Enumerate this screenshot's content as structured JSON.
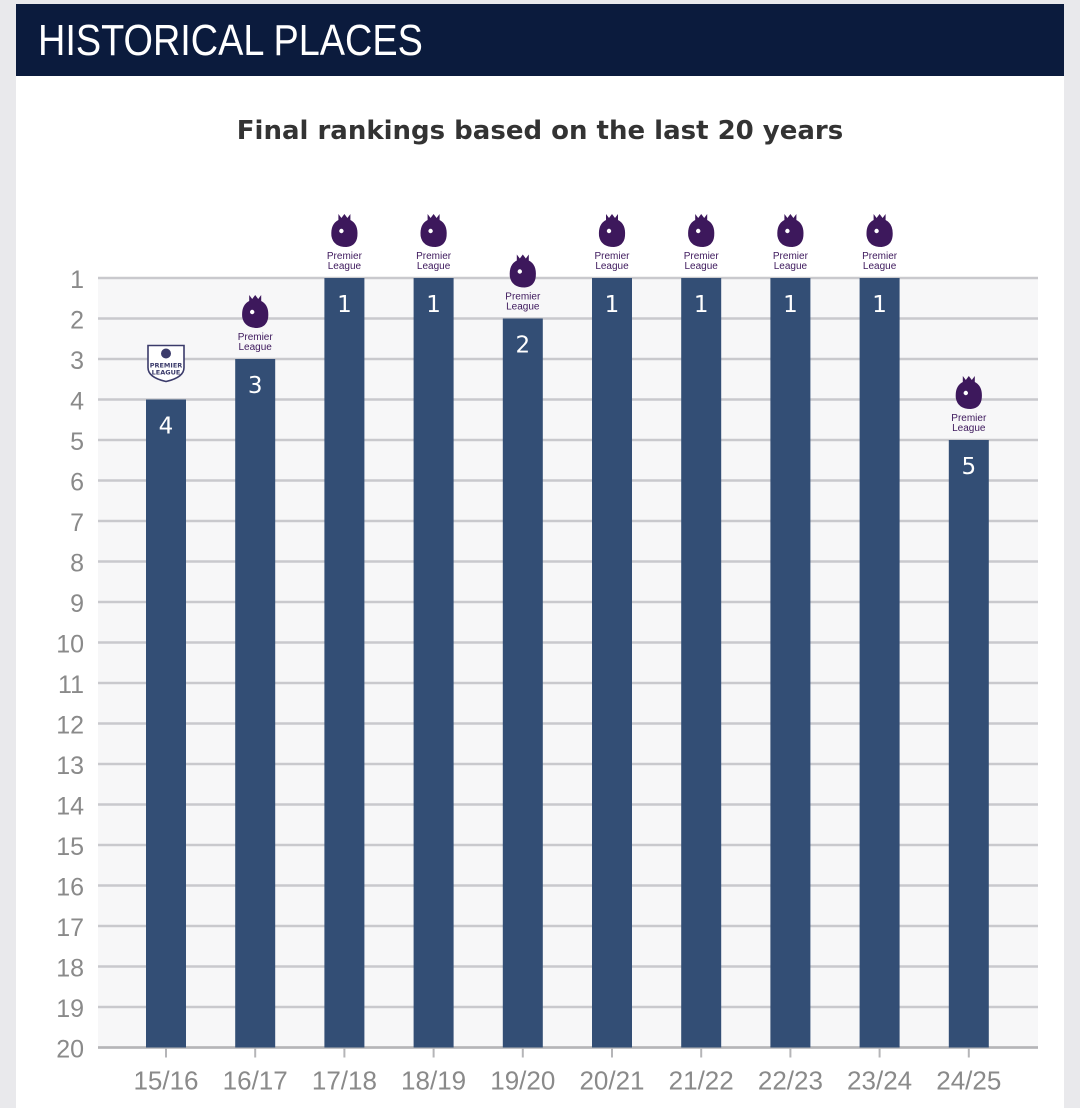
{
  "header": {
    "title": "HISTORICAL PLACES"
  },
  "colors": {
    "header_bg": "#0b1b3d",
    "bar": "#334e75",
    "grid": "#c9c9cd",
    "plot_bg": "#f7f7f8",
    "logo": "#3d185c"
  },
  "chart_data": {
    "type": "bar",
    "title": "Final rankings based on the last 20 years",
    "categories": [
      "15/16",
      "16/17",
      "17/18",
      "18/19",
      "19/20",
      "20/21",
      "21/22",
      "22/23",
      "23/24",
      "24/25"
    ],
    "values": [
      4,
      3,
      1,
      1,
      2,
      1,
      1,
      1,
      1,
      5
    ],
    "y_ticks": [
      "1",
      "2",
      "3",
      "4",
      "5",
      "6",
      "7",
      "8",
      "9",
      "10",
      "11",
      "12",
      "13",
      "14",
      "15",
      "16",
      "17",
      "18",
      "19",
      "20"
    ],
    "ylim": [
      1,
      20
    ],
    "y_inverted": true,
    "grid": true,
    "logos": [
      "old-premier-league-logo",
      "premier-league-logo",
      "premier-league-logo",
      "premier-league-logo",
      "premier-league-logo",
      "premier-league-logo",
      "premier-league-logo",
      "premier-league-logo",
      "premier-league-logo",
      "premier-league-logo"
    ],
    "logo_text": {
      "line1": "Premier",
      "line2": "League",
      "old_line1": "PREMIER",
      "old_line2": "LEAGUE"
    }
  }
}
